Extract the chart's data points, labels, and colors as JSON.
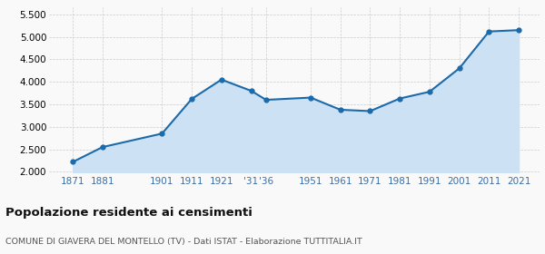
{
  "years": [
    1871,
    1881,
    1901,
    1911,
    1921,
    1931,
    1936,
    1951,
    1961,
    1971,
    1981,
    1991,
    2001,
    2011,
    2021
  ],
  "population": [
    2220,
    2550,
    2850,
    3620,
    4050,
    3800,
    3600,
    3650,
    3380,
    3350,
    3630,
    3780,
    4300,
    5120,
    5150
  ],
  "x_tick_labels": [
    "1871",
    "1881",
    "1901",
    "1911",
    "1921",
    "'31",
    "'36",
    "1951",
    "1961",
    "1971",
    "1981",
    "1991",
    "2001",
    "2011",
    "2021"
  ],
  "y_ticks": [
    2000,
    2500,
    3000,
    3500,
    4000,
    4500,
    5000,
    5500
  ],
  "ylim": [
    1980,
    5650
  ],
  "xlim": [
    1863,
    2028
  ],
  "line_color": "#1b6aaa",
  "fill_color": "#cce2f4",
  "marker_color": "#1b6aaa",
  "grid_color": "#cccccc",
  "title": "Popolazione residente ai censimenti",
  "subtitle": "COMUNE DI GIAVERA DEL MONTELLO (TV) - Dati ISTAT - Elaborazione TUTTITALIA.IT",
  "bg_color": "#f9f9f9",
  "title_fontsize": 9.5,
  "subtitle_fontsize": 6.8,
  "tick_fontsize": 7.5
}
